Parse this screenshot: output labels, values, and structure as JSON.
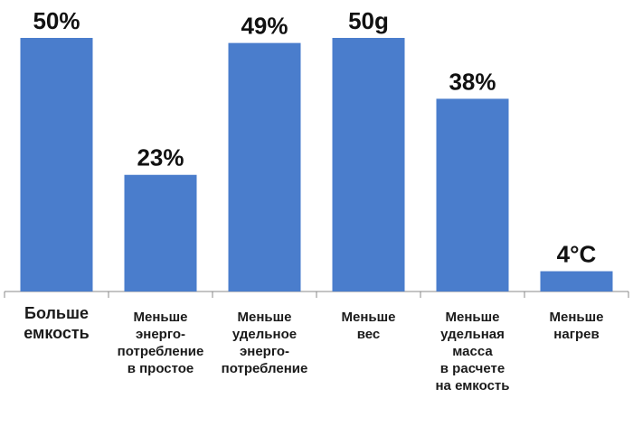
{
  "chart_data": {
    "type": "bar",
    "categories": [
      "Больше\nемкость",
      "Меньше\nэнерго-\nпотребление\nв простое",
      "Меньше\nудельное\nэнерго-\nпотребление",
      "Меньше\nвес",
      "Меньше\nудельная\nмасса\nв расчете\nна емкость",
      "Меньше\nнагрев"
    ],
    "values": [
      50,
      23,
      49,
      50,
      38,
      4
    ],
    "value_labels": [
      "50%",
      "23%",
      "49%",
      "50g",
      "38%",
      "4°C"
    ],
    "color": "#4a7dcc"
  }
}
